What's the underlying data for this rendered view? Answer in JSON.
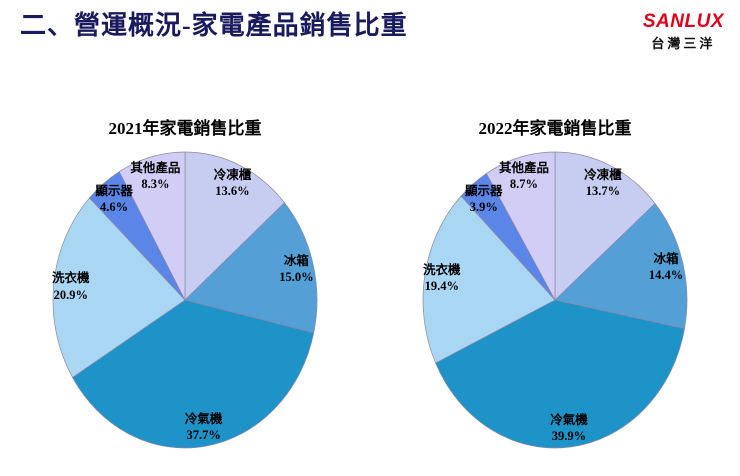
{
  "page": {
    "title": "二、營運概況-家電產品銷售比重",
    "title_color": "#1a1a5e",
    "logo": {
      "brand": "SANLUX",
      "subtitle": "台灣三洋",
      "brand_color": "#e1001a"
    }
  },
  "chart_data": [
    {
      "type": "pie",
      "title": "2021年家電銷售比重",
      "categories": [
        "冷凍櫃",
        "冰箱",
        "冷氣機",
        "洗衣機",
        "顯示器",
        "其他產品"
      ],
      "values": [
        13.6,
        15.0,
        37.7,
        20.9,
        4.6,
        8.3
      ],
      "unit": "%",
      "colors": [
        "#c7cdf0",
        "#54a0d6",
        "#1e93c8",
        "#a9d6f2",
        "#5b86e8",
        "#d2cdf4"
      ],
      "border_color": "#8888a8",
      "start_angle_deg": 0,
      "direction": "clockwise",
      "label_style": "category name above percentage, bold, placed near rim inside slice"
    },
    {
      "type": "pie",
      "title": "2022年家電銷售比重",
      "categories": [
        "冷凍櫃",
        "冰箱",
        "冷氣機",
        "洗衣機",
        "顯示器",
        "其他產品"
      ],
      "values": [
        13.7,
        14.4,
        39.9,
        19.4,
        3.9,
        8.7
      ],
      "unit": "%",
      "colors": [
        "#c7cdf0",
        "#54a0d6",
        "#1e93c8",
        "#a9d6f2",
        "#5b86e8",
        "#d2cdf4"
      ],
      "border_color": "#8888a8",
      "start_angle_deg": 0,
      "direction": "clockwise",
      "label_style": "category name above percentage, bold, placed near rim inside slice"
    }
  ]
}
